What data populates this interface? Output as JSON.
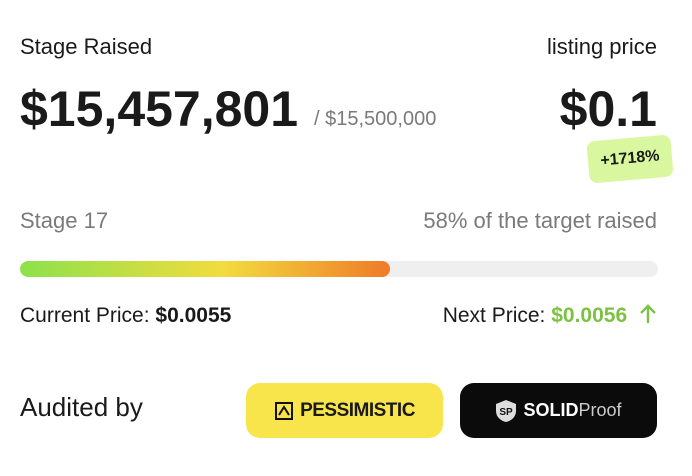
{
  "raised": {
    "label": "Stage Raised",
    "amount": "$15,457,801",
    "target": "/ $15,500,000"
  },
  "listing": {
    "label": "listing price",
    "price": "$0.1",
    "change": "+1718%"
  },
  "stage": {
    "name": "Stage 17",
    "progress": {
      "value": 58,
      "label": "58%"
    },
    "progress_text": "of the target raised"
  },
  "prices": {
    "current_label": "Current Price:",
    "current_value": "$0.0055",
    "next_label": "Next Price:",
    "next_value": "$0.0056"
  },
  "audits": {
    "label": "Audited by",
    "auditors": [
      {
        "name": "PESSIMISTIC"
      },
      {
        "name_bold": "SOLID",
        "name_light": "Proof"
      }
    ]
  }
}
